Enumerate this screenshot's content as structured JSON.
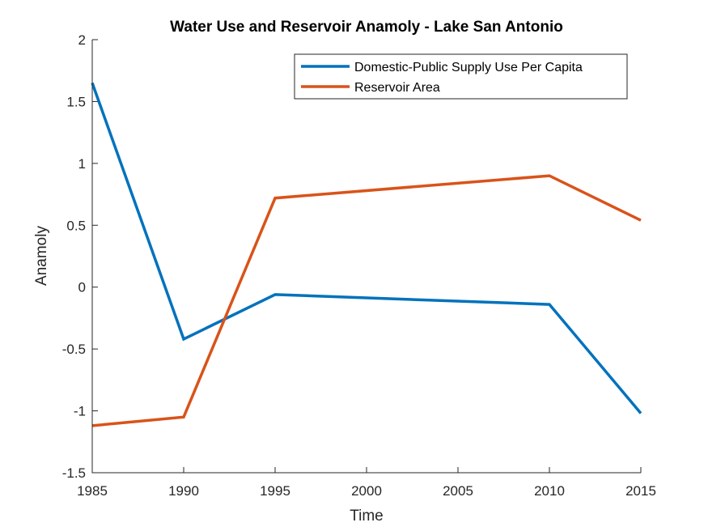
{
  "chart_data": {
    "type": "line",
    "title": "Water Use and Reservoir Anamoly - Lake San Antonio",
    "xlabel": "Time",
    "ylabel": "Anamoly",
    "xlim": [
      1985,
      2015
    ],
    "ylim": [
      -1.5,
      2
    ],
    "x_ticks": [
      "1985",
      "1990",
      "1995",
      "2000",
      "2005",
      "2010",
      "2015"
    ],
    "y_ticks": [
      "-1.5",
      "-1",
      "-0.5",
      "0",
      "0.5",
      "1",
      "1.5",
      "2"
    ],
    "grid": false,
    "legend_position": "top-right",
    "x": [
      1985,
      1990,
      1995,
      2010,
      2015
    ],
    "series": [
      {
        "name": "Domestic-Public Supply Use Per Capita",
        "color": "#0072BD",
        "values": [
          1.65,
          -0.42,
          -0.06,
          -0.14,
          -1.02
        ]
      },
      {
        "name": "Reservoir Area",
        "color": "#D95319",
        "values": [
          -1.12,
          -1.05,
          0.72,
          0.9,
          0.54
        ]
      }
    ]
  }
}
